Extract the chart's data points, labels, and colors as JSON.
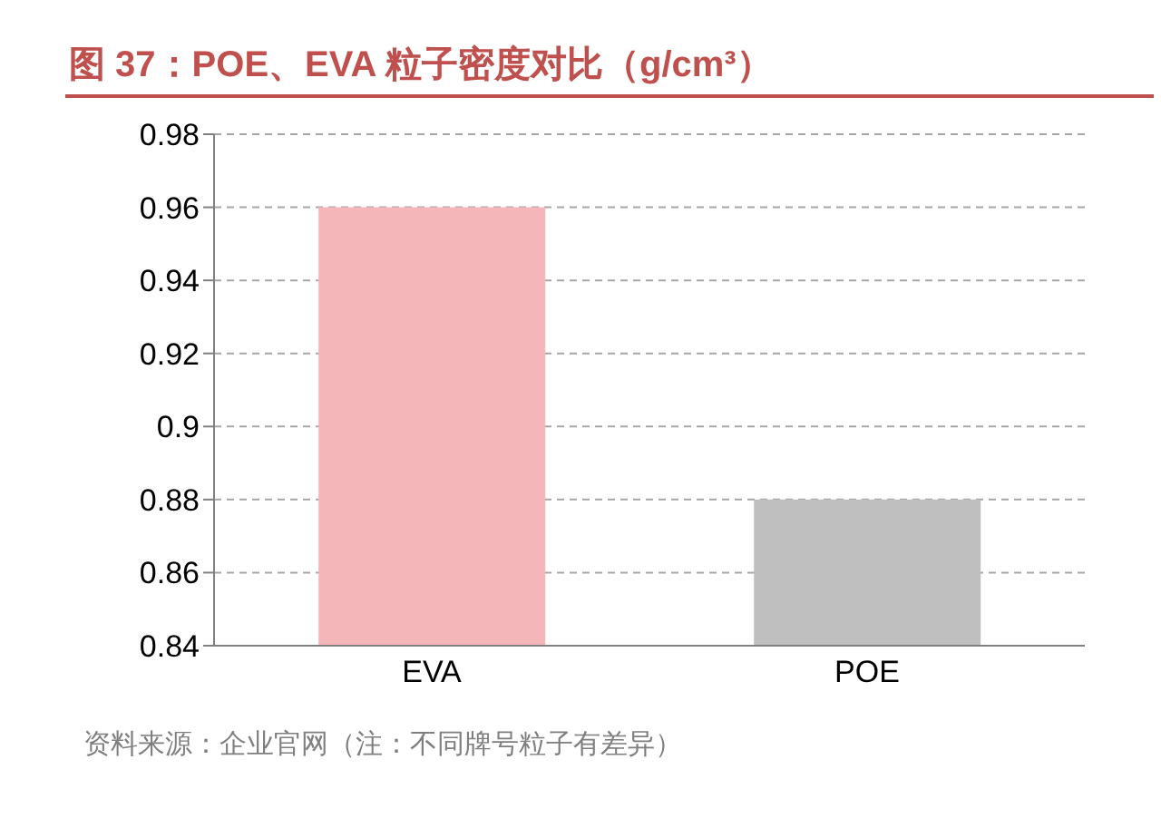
{
  "chart_data": {
    "type": "bar",
    "title": "图 37：POE、EVA 粒子密度对比（g/cm³）",
    "categories": [
      "EVA",
      "POE"
    ],
    "values": [
      0.96,
      0.88
    ],
    "colors": [
      "#f4b6b9",
      "#bfbfbf"
    ],
    "ylim": [
      0.84,
      0.98
    ],
    "yticks": [
      0.84,
      0.86,
      0.88,
      0.9,
      0.92,
      0.94,
      0.96,
      0.98
    ],
    "grid": "y",
    "annotations": [
      "资料来源：企业官网（注：不同牌号粒子有差异）"
    ]
  }
}
